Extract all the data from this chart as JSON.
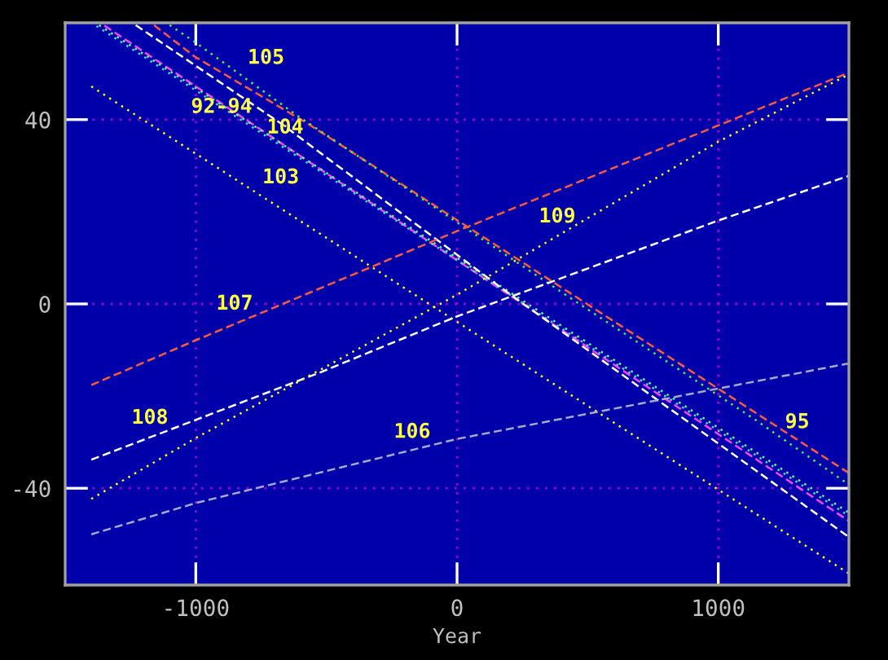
{
  "chart_data": {
    "type": "line",
    "xlabel": "Year",
    "xlim": [
      -1500,
      1500
    ],
    "xticks": [
      -1000,
      0,
      1000
    ],
    "ylim": [
      -61,
      61
    ],
    "yticks": [
      -40,
      0,
      40
    ],
    "grid": true,
    "series": [
      {
        "color": "#ff40ff",
        "line_style": "dashed",
        "x": [
          -1350,
          1500
        ],
        "values": [
          60.4,
          -47.1
        ]
      },
      {
        "color": "#40e0e0",
        "line_style": "dotted",
        "x": [
          -1380,
          -130,
          1500
        ],
        "values": [
          60.3,
          14.3,
          -46.0
        ]
      },
      {
        "color": "#60ff80",
        "line_style": "dotted",
        "x": [
          -1370,
          1500
        ],
        "values": [
          60.5,
          -45.3
        ]
      },
      {
        "color": "#ff5a3c",
        "line_style": "dashed",
        "x": [
          -1160,
          -1005,
          -568,
          0,
          1500
        ],
        "values": [
          60.5,
          53.7,
          39.0,
          18.2,
          -36.7
        ]
      },
      {
        "color": "#40ff40",
        "line_style": "dotted",
        "x": [
          -1100,
          -1005,
          -610,
          431,
          1138,
          1500
        ],
        "values": [
          60.5,
          56.9,
          40.8,
          1.4,
          -25.0,
          -39.2
        ]
      },
      {
        "color": "#ffff00",
        "line_style": "dotted",
        "x": [
          -1400,
          -340,
          1000,
          1500
        ],
        "values": [
          47.2,
          8.5,
          -40.3,
          -58.5
        ]
      },
      {
        "color": "#ffffff",
        "line_style": "dashed",
        "x": [
          -1230,
          -670,
          200,
          1500
        ],
        "values": [
          60.5,
          39.0,
          2.2,
          -50.6
        ]
      },
      {
        "color": "#a8a8c8",
        "line_style": "dashed",
        "x": [
          -1400,
          -1000,
          0,
          1500
        ],
        "values": [
          -50.0,
          -43.2,
          -29.3,
          -12.9
        ]
      },
      {
        "color": "#ff5a3c",
        "line_style": "dashed",
        "x": [
          -1400,
          -1005,
          0,
          1500
        ],
        "values": [
          -17.6,
          -8.0,
          15.8,
          50.2
        ]
      },
      {
        "color": "#ffffff",
        "line_style": "dashed",
        "x": [
          -1400,
          -530,
          0,
          650,
          1000,
          1500
        ],
        "values": [
          -33.8,
          -15.0,
          -2.7,
          10.8,
          18.1,
          27.8
        ]
      },
      {
        "color": "#ffff00",
        "line_style": "dotted",
        "x": [
          -1400,
          -1000,
          0,
          1000,
          1500
        ],
        "values": [
          -42.3,
          -29.1,
          2.0,
          35.2,
          49.8
        ]
      }
    ],
    "annotations": [
      "105",
      "92-94",
      "104",
      "103",
      "107",
      "109",
      "108",
      "106",
      "95"
    ]
  }
}
